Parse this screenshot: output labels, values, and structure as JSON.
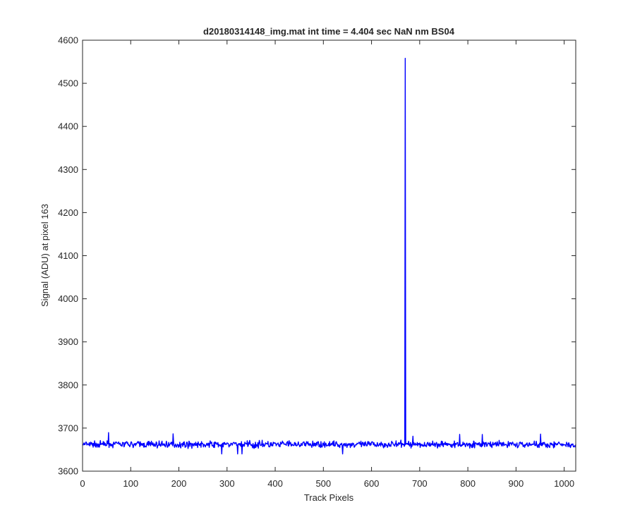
{
  "chart_data": {
    "type": "line",
    "title": "d20180314148_img.mat int time = 4.404 sec  NaN nm BS04",
    "xlabel": "Track Pixels",
    "ylabel": "Signal (ADU) at pixel 163",
    "xlim": [
      0,
      1024
    ],
    "ylim": [
      3600,
      4600
    ],
    "xticks": [
      0,
      100,
      200,
      300,
      400,
      500,
      600,
      700,
      800,
      900,
      1000
    ],
    "yticks": [
      3600,
      3700,
      3800,
      3900,
      4000,
      4100,
      4200,
      4300,
      4400,
      4500,
      4600
    ],
    "grid": false,
    "legend": "none",
    "series": [
      {
        "color": "#0000ff",
        "baseline_mean": 3662,
        "baseline_noise_range": [
          3640,
          3690
        ],
        "x_range": [
          1,
          1024
        ],
        "spike": {
          "x": [
            669,
            670,
            671
          ],
          "y": [
            3660,
            4558,
            3662
          ]
        }
      }
    ]
  }
}
